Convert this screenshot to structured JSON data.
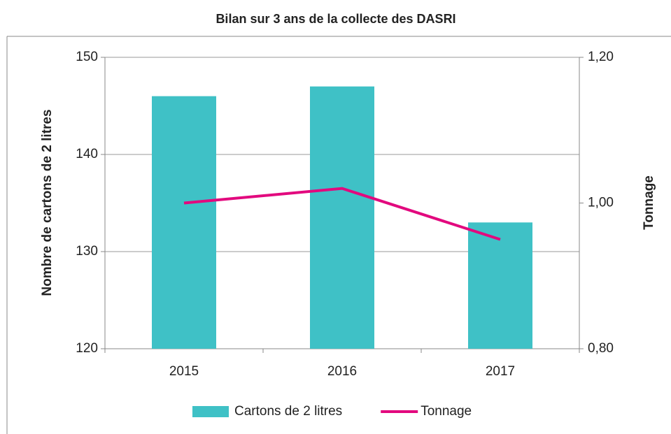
{
  "chart_data": {
    "type": "bar_line",
    "title": "Bilan sur 3 ans de la collecte des DASRI",
    "ylabel": "Nombre de cartons de 2 litres",
    "y2label": "Tonnage",
    "categories": [
      "2015",
      "2016",
      "2017"
    ],
    "series": [
      {
        "name": "Cartons de 2 litres",
        "type": "bar",
        "color": "#3fc1c6",
        "values": [
          146,
          147,
          133
        ]
      },
      {
        "name": "Tonnage",
        "type": "line",
        "axis": "y2",
        "color": "#e2097e",
        "values": [
          1.0,
          1.02,
          0.95
        ]
      }
    ],
    "ylim": [
      120,
      150
    ],
    "yticks": [
      120,
      130,
      140,
      150
    ],
    "y2lim": [
      0.8,
      1.2
    ],
    "y2ticks": [
      {
        "value": 0.8,
        "label": "0,80"
      },
      {
        "value": 1.0,
        "label": "1,00"
      },
      {
        "value": 1.2,
        "label": "1,20"
      }
    ],
    "grid": true,
    "legend": "bottom"
  }
}
